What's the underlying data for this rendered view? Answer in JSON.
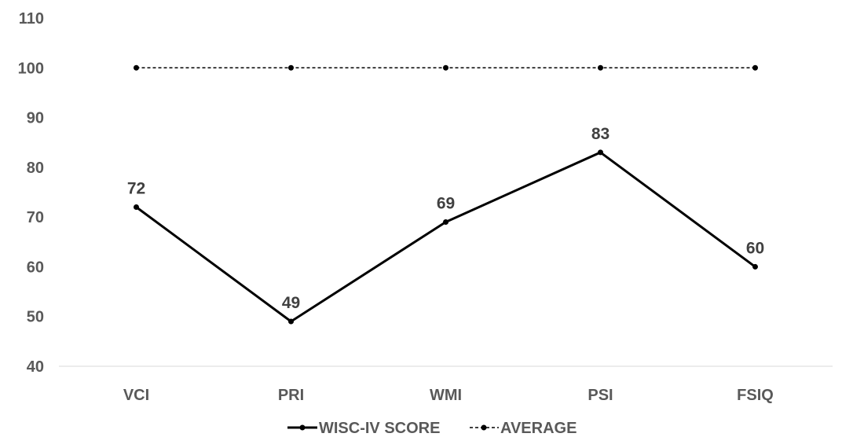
{
  "chart_data": {
    "type": "line",
    "categories": [
      "VCI",
      "PRI",
      "WMI",
      "PSI",
      "FSIQ"
    ],
    "series": [
      {
        "name": "WISC-IV SCORE",
        "values": [
          72,
          49,
          69,
          83,
          60
        ],
        "color": "#000000",
        "style": "solid",
        "data_labels": true
      },
      {
        "name": "AVERAGE",
        "values": [
          100,
          100,
          100,
          100,
          100
        ],
        "color": "#000000",
        "style": "dashed",
        "data_labels": false
      }
    ],
    "y_ticks": [
      "40",
      "50",
      "60",
      "70",
      "80",
      "90",
      "100",
      "110"
    ],
    "ylim": [
      40,
      110
    ],
    "grid": false,
    "legend_position": "bottom"
  }
}
